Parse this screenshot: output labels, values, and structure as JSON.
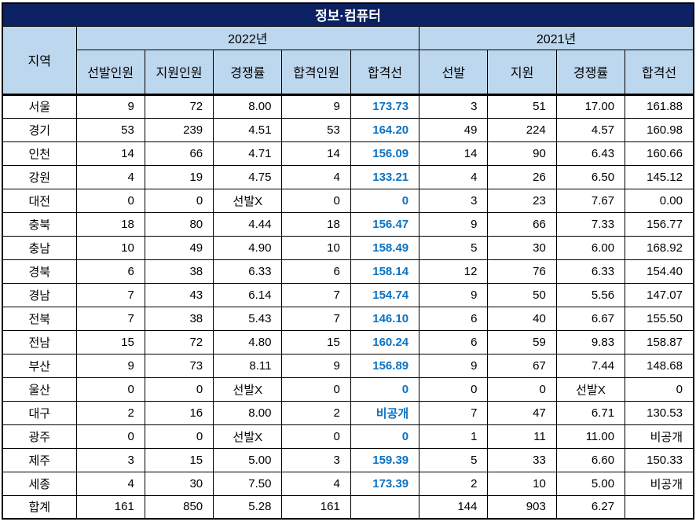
{
  "title": "정보·컴퓨터",
  "colors": {
    "title_bg": "#0B2161",
    "title_text": "#FFFFFF",
    "header_bg": "#BDD7EE",
    "highlight_text": "#0B72C4",
    "border": "#000000"
  },
  "table": {
    "region_header": "지역",
    "year_groups": [
      {
        "label": "2022년",
        "columns": [
          "선발인원",
          "지원인원",
          "경쟁률",
          "합격인원",
          "합격선"
        ]
      },
      {
        "label": "2021년",
        "columns": [
          "선발",
          "지원",
          "경쟁률",
          "합격선"
        ]
      }
    ],
    "rows": [
      {
        "region": "서울",
        "y2022": [
          "9",
          "72",
          "8.00",
          "9",
          "173.73"
        ],
        "y2021": [
          "3",
          "51",
          "17.00",
          "161.88"
        ]
      },
      {
        "region": "경기",
        "y2022": [
          "53",
          "239",
          "4.51",
          "53",
          "164.20"
        ],
        "y2021": [
          "49",
          "224",
          "4.57",
          "160.98"
        ]
      },
      {
        "region": "인천",
        "y2022": [
          "14",
          "66",
          "4.71",
          "14",
          "156.09"
        ],
        "y2021": [
          "14",
          "90",
          "6.43",
          "160.66"
        ]
      },
      {
        "region": "강원",
        "y2022": [
          "4",
          "19",
          "4.75",
          "4",
          "133.21"
        ],
        "y2021": [
          "4",
          "26",
          "6.50",
          "145.12"
        ]
      },
      {
        "region": "대전",
        "y2022": [
          "0",
          "0",
          "선발X",
          "0",
          "0"
        ],
        "y2021": [
          "3",
          "23",
          "7.67",
          "0.00"
        ]
      },
      {
        "region": "충북",
        "y2022": [
          "18",
          "80",
          "4.44",
          "18",
          "156.47"
        ],
        "y2021": [
          "9",
          "66",
          "7.33",
          "156.77"
        ]
      },
      {
        "region": "충남",
        "y2022": [
          "10",
          "49",
          "4.90",
          "10",
          "158.49"
        ],
        "y2021": [
          "5",
          "30",
          "6.00",
          "168.92"
        ]
      },
      {
        "region": "경북",
        "y2022": [
          "6",
          "38",
          "6.33",
          "6",
          "158.14"
        ],
        "y2021": [
          "12",
          "76",
          "6.33",
          "154.40"
        ]
      },
      {
        "region": "경남",
        "y2022": [
          "7",
          "43",
          "6.14",
          "7",
          "154.74"
        ],
        "y2021": [
          "9",
          "50",
          "5.56",
          "147.07"
        ]
      },
      {
        "region": "전북",
        "y2022": [
          "7",
          "38",
          "5.43",
          "7",
          "146.10"
        ],
        "y2021": [
          "6",
          "40",
          "6.67",
          "155.50"
        ]
      },
      {
        "region": "전남",
        "y2022": [
          "15",
          "72",
          "4.80",
          "15",
          "160.24"
        ],
        "y2021": [
          "6",
          "59",
          "9.83",
          "158.87"
        ]
      },
      {
        "region": "부산",
        "y2022": [
          "9",
          "73",
          "8.11",
          "9",
          "156.89"
        ],
        "y2021": [
          "9",
          "67",
          "7.44",
          "148.68"
        ]
      },
      {
        "region": "울산",
        "y2022": [
          "0",
          "0",
          "선발X",
          "0",
          "0"
        ],
        "y2021": [
          "0",
          "0",
          "선발X",
          "0"
        ]
      },
      {
        "region": "대구",
        "y2022": [
          "2",
          "16",
          "8.00",
          "2",
          "비공개"
        ],
        "y2021": [
          "7",
          "47",
          "6.71",
          "130.53"
        ]
      },
      {
        "region": "광주",
        "y2022": [
          "0",
          "0",
          "선발X",
          "0",
          "0"
        ],
        "y2021": [
          "1",
          "11",
          "11.00",
          "비공개"
        ]
      },
      {
        "region": "제주",
        "y2022": [
          "3",
          "15",
          "5.00",
          "3",
          "159.39"
        ],
        "y2021": [
          "5",
          "33",
          "6.60",
          "150.33"
        ]
      },
      {
        "region": "세종",
        "y2022": [
          "4",
          "30",
          "7.50",
          "4",
          "173.39"
        ],
        "y2021": [
          "2",
          "10",
          "5.00",
          "비공개"
        ]
      },
      {
        "region": "합계",
        "y2022": [
          "161",
          "850",
          "5.28",
          "161",
          ""
        ],
        "y2021": [
          "144",
          "903",
          "6.27",
          ""
        ]
      }
    ]
  }
}
